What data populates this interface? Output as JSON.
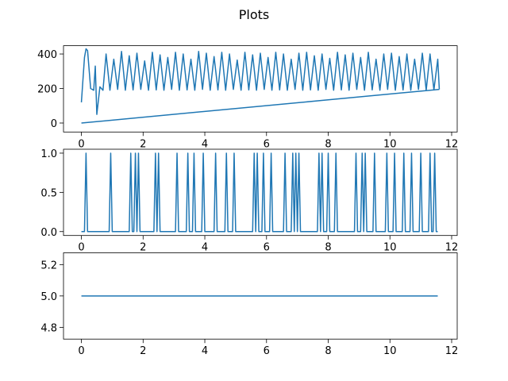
{
  "title": "Plots",
  "chart_data": [
    {
      "type": "line",
      "xlim": [
        -0.58,
        12.18
      ],
      "ylim": [
        -52,
        448
      ],
      "xticks": [
        0,
        2,
        4,
        6,
        8,
        10,
        12
      ],
      "yticks": [
        0,
        200,
        400
      ],
      "series": [
        {
          "color": "#1f77b4",
          "x": [
            0,
            0.1,
            0.15,
            0.2,
            0.3,
            0.4,
            0.45,
            0.5,
            0.6,
            0.7,
            0.8,
            0.925,
            1.05,
            1.175,
            1.3,
            1.425,
            1.55,
            1.675,
            1.8,
            1.925,
            2.05,
            2.175,
            2.3,
            2.425,
            2.55,
            2.675,
            2.8,
            2.925,
            3.05,
            3.175,
            3.3,
            3.425,
            3.55,
            3.675,
            3.8,
            3.925,
            4.05,
            4.175,
            4.3,
            4.425,
            4.55,
            4.675,
            4.8,
            4.925,
            5.05,
            5.175,
            5.3,
            5.425,
            5.55,
            5.675,
            5.8,
            5.925,
            6.05,
            6.175,
            6.3,
            6.425,
            6.55,
            6.675,
            6.8,
            6.925,
            7.05,
            7.175,
            7.3,
            7.425,
            7.55,
            7.675,
            7.8,
            7.925,
            8.05,
            8.175,
            8.3,
            8.425,
            8.55,
            8.675,
            8.8,
            8.925,
            9.05,
            9.175,
            9.3,
            9.425,
            9.55,
            9.675,
            9.8,
            9.925,
            10.05,
            10.175,
            10.3,
            10.425,
            10.55,
            10.675,
            10.8,
            10.925,
            11.05,
            11.175,
            11.3,
            11.425,
            11.55,
            11.6
          ],
          "values": [
            120,
            380,
            430,
            420,
            200,
            190,
            330,
            50,
            210,
            190,
            400,
            190,
            370,
            195,
            415,
            190,
            390,
            192,
            405,
            195,
            360,
            190,
            410,
            192,
            395,
            190,
            380,
            195,
            410,
            190,
            400,
            192,
            370,
            190,
            415,
            195,
            405,
            190,
            385,
            192,
            410,
            190,
            400,
            195,
            365,
            190,
            410,
            192,
            395,
            190,
            405,
            195,
            380,
            190,
            410,
            192,
            400,
            190,
            370,
            195,
            405,
            190,
            410,
            192,
            390,
            190,
            400,
            195,
            375,
            190,
            410,
            192,
            395,
            190,
            405,
            195,
            380,
            190,
            410,
            192,
            370,
            190,
            400,
            195,
            405,
            190,
            385,
            192,
            400,
            190,
            370,
            195,
            405,
            190,
            400,
            192,
            370,
            195
          ]
        },
        {
          "color": "#1f77b4",
          "x": [
            0,
            11.6
          ],
          "values": [
            0,
            195
          ]
        }
      ]
    },
    {
      "type": "line",
      "xlim": [
        -0.58,
        12.18
      ],
      "ylim": [
        -0.05,
        1.05
      ],
      "xticks": [
        0,
        2,
        4,
        6,
        8,
        10,
        12
      ],
      "yticks": [
        {
          "value": 0,
          "label": "0.0"
        },
        {
          "value": 0.5,
          "label": "0.5"
        },
        {
          "value": 1,
          "label": "1.0"
        }
      ],
      "series": [
        {
          "color": "#1f77b4",
          "x": [
            0,
            0.1,
            0.15,
            0.2,
            0.9,
            0.95,
            1.0,
            1.55,
            1.6,
            1.65,
            1.7,
            1.75,
            1.8,
            1.85,
            1.9,
            2.35,
            2.4,
            2.45,
            2.5,
            2.55,
            3.05,
            3.1,
            3.15,
            3.4,
            3.45,
            3.5,
            3.6,
            3.65,
            3.7,
            3.9,
            3.95,
            4.0,
            4.3,
            4.35,
            4.4,
            4.65,
            4.7,
            4.75,
            4.9,
            4.95,
            5.0,
            5.55,
            5.6,
            5.65,
            5.7,
            5.75,
            5.85,
            5.9,
            5.95,
            6.1,
            6.15,
            6.2,
            6.55,
            6.6,
            6.65,
            6.8,
            6.85,
            6.9,
            6.95,
            7.0,
            7.05,
            7.1,
            7.65,
            7.7,
            7.75,
            7.8,
            7.85,
            7.95,
            8.0,
            8.05,
            8.2,
            8.25,
            8.3,
            8.85,
            8.9,
            8.95,
            9.05,
            9.1,
            9.15,
            9.2,
            9.25,
            9.45,
            9.5,
            9.55,
            9.85,
            9.9,
            9.95,
            10.1,
            10.15,
            10.2,
            10.4,
            10.45,
            10.5,
            10.65,
            10.7,
            10.75,
            10.95,
            11.0,
            11.05,
            11.25,
            11.3,
            11.35,
            11.4,
            11.45,
            11.5,
            11.55
          ],
          "values": [
            0,
            0,
            1,
            0,
            0,
            1,
            0,
            0,
            1,
            0,
            0,
            1,
            0,
            1,
            0,
            0,
            1,
            0,
            1,
            0,
            0,
            1,
            0,
            0,
            1,
            0,
            0,
            1,
            0,
            0,
            1,
            0,
            0,
            1,
            0,
            0,
            1,
            0,
            0,
            1,
            0,
            0,
            1,
            0,
            1,
            0,
            0,
            1,
            0,
            0,
            1,
            0,
            0,
            1,
            0,
            0,
            1,
            0,
            1,
            0,
            1,
            0,
            0,
            1,
            0,
            1,
            0,
            0,
            1,
            0,
            0,
            1,
            0,
            0,
            1,
            0,
            0,
            1,
            0,
            1,
            0,
            0,
            1,
            0,
            0,
            1,
            0,
            0,
            1,
            0,
            0,
            1,
            0,
            0,
            1,
            0,
            0,
            1,
            0,
            0,
            1,
            0,
            0,
            1,
            0,
            0
          ]
        }
      ]
    },
    {
      "type": "line",
      "xlim": [
        -0.58,
        12.18
      ],
      "ylim": [
        4.725,
        5.275
      ],
      "xticks": [
        0,
        2,
        4,
        6,
        8,
        10,
        12
      ],
      "yticks": [
        {
          "value": 4.8,
          "label": "4.8"
        },
        {
          "value": 5,
          "label": "5.0"
        },
        {
          "value": 5.2,
          "label": "5.2"
        }
      ],
      "series": [
        {
          "color": "#1f77b4",
          "x": [
            0,
            11.55
          ],
          "values": [
            5,
            5
          ]
        }
      ]
    }
  ]
}
